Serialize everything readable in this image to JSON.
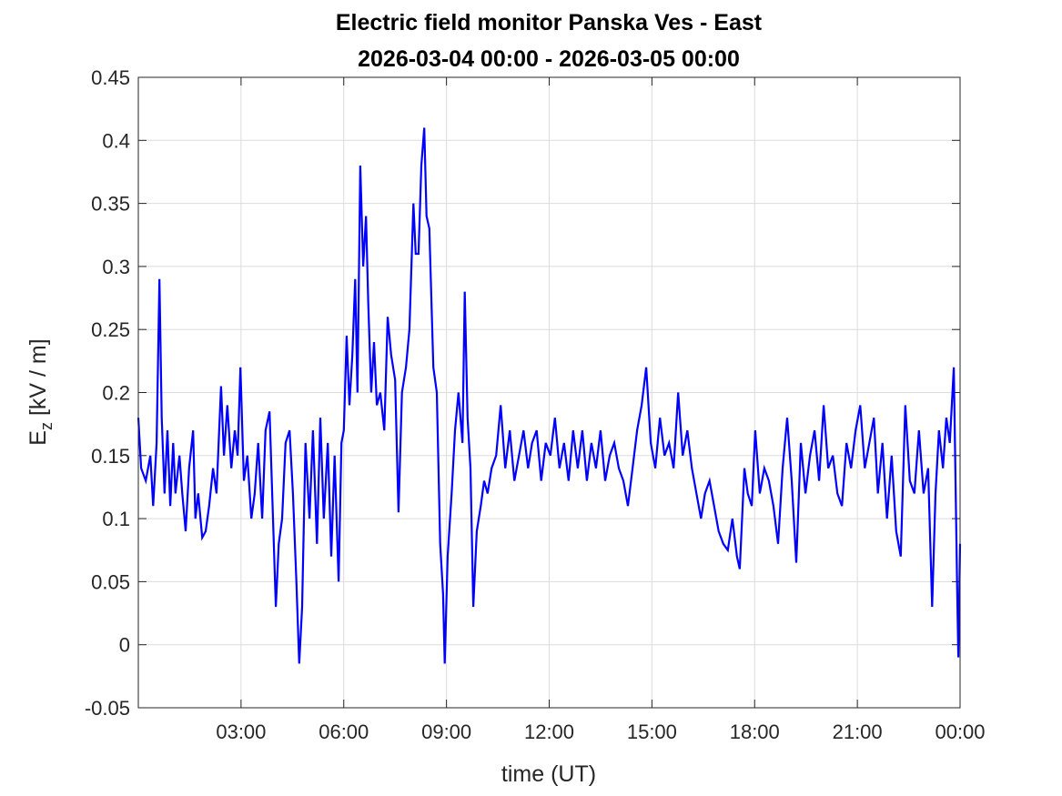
{
  "chart_data": {
    "type": "line",
    "title": [
      "Electric field monitor Panska Ves - East",
      "2026-03-04 00:00 - 2026-03-05 00:00"
    ],
    "xlabel": "time (UT)",
    "ylabel": {
      "main": "E",
      "sub": "z",
      "rest": " [kV / m]"
    },
    "xlim": [
      "2026-03-04 00:00",
      "2026-03-05 00:00"
    ],
    "ylim": [
      -0.05,
      0.45
    ],
    "grid": true,
    "x_ticks": [
      "03:00",
      "06:00",
      "09:00",
      "12:00",
      "15:00",
      "18:00",
      "21:00",
      "00:00"
    ],
    "y_ticks": [
      "-0.05",
      "0",
      "0.05",
      "0.1",
      "0.15",
      "0.2",
      "0.25",
      "0.3",
      "0.35",
      "0.4",
      "0.45"
    ],
    "line_color": "#0000ff",
    "series": [
      {
        "x": [
          "00:00",
          "00:05",
          "00:13",
          "00:21",
          "00:26",
          "00:32",
          "00:37",
          "00:41",
          "00:46",
          "00:51",
          "00:56",
          "01:01",
          "01:05",
          "01:12",
          "01:17",
          "01:23",
          "01:29",
          "01:36",
          "01:40",
          "01:45",
          "01:52",
          "01:58",
          "02:04",
          "02:11",
          "02:17",
          "02:25",
          "02:30",
          "02:36",
          "02:43",
          "02:49",
          "02:54",
          "02:59",
          "03:05",
          "03:11",
          "03:18",
          "03:24",
          "03:30",
          "03:37",
          "03:43",
          "03:50",
          "03:56",
          "04:01",
          "04:06",
          "04:12",
          "04:18",
          "04:25",
          "04:31",
          "04:37",
          "04:42",
          "04:47",
          "04:53",
          "05:00",
          "05:06",
          "05:13",
          "05:19",
          "05:25",
          "05:32",
          "05:38",
          "05:44",
          "05:51",
          "05:56",
          "06:00",
          "06:05",
          "06:10",
          "06:15",
          "06:20",
          "06:24",
          "06:29",
          "06:34",
          "06:39",
          "06:43",
          "06:48",
          "06:53",
          "06:58",
          "07:04",
          "07:11",
          "07:17",
          "07:23",
          "07:30",
          "07:36",
          "07:42",
          "07:49",
          "07:55",
          "08:02",
          "08:06",
          "08:11",
          "08:16",
          "08:21",
          "08:25",
          "08:30",
          "08:37",
          "08:43",
          "08:49",
          "08:54",
          "08:57",
          "09:02",
          "09:09",
          "09:15",
          "09:21",
          "09:28",
          "09:32",
          "09:37",
          "09:42",
          "09:47",
          "09:53",
          "10:00",
          "10:06",
          "10:12",
          "10:19",
          "10:27",
          "10:35",
          "10:43",
          "10:51",
          "10:59",
          "11:07",
          "11:15",
          "11:23",
          "11:30",
          "11:38",
          "11:46",
          "11:54",
          "12:02",
          "12:10",
          "12:18",
          "12:26",
          "12:34",
          "12:42",
          "12:50",
          "12:58",
          "13:06",
          "13:14",
          "13:22",
          "13:30",
          "13:38",
          "13:46",
          "13:54",
          "14:02",
          "14:10",
          "14:18",
          "14:26",
          "14:34",
          "14:42",
          "14:50",
          "14:58",
          "15:06",
          "15:14",
          "15:22",
          "15:30",
          "15:38",
          "15:46",
          "15:54",
          "16:02",
          "16:10",
          "16:18",
          "16:26",
          "16:33",
          "16:41",
          "16:49",
          "16:57",
          "17:05",
          "17:13",
          "17:21",
          "17:29",
          "17:34",
          "17:42",
          "17:48",
          "17:55",
          "18:01",
          "18:09",
          "18:17",
          "18:25",
          "18:33",
          "18:41",
          "18:49",
          "18:57",
          "19:05",
          "19:13",
          "19:21",
          "19:29",
          "19:37",
          "19:45",
          "19:53",
          "20:01",
          "20:09",
          "20:17",
          "20:25",
          "20:33",
          "20:41",
          "20:49",
          "20:57",
          "21:05",
          "21:13",
          "21:21",
          "21:29",
          "21:36",
          "21:44",
          "21:52",
          "22:00",
          "22:08",
          "22:16",
          "22:24",
          "22:32",
          "22:40",
          "22:48",
          "22:56",
          "23:04",
          "23:11",
          "23:17",
          "23:23",
          "23:30",
          "23:36",
          "23:42",
          "23:49",
          "23:55",
          "23:57",
          "00:00"
        ],
        "y": [
          0.18,
          0.14,
          0.13,
          0.15,
          0.11,
          0.16,
          0.29,
          0.18,
          0.12,
          0.17,
          0.11,
          0.16,
          0.12,
          0.15,
          0.12,
          0.09,
          0.14,
          0.17,
          0.1,
          0.12,
          0.085,
          0.09,
          0.11,
          0.14,
          0.12,
          0.205,
          0.15,
          0.19,
          0.14,
          0.17,
          0.15,
          0.22,
          0.13,
          0.15,
          0.1,
          0.12,
          0.16,
          0.1,
          0.17,
          0.185,
          0.1,
          0.03,
          0.08,
          0.1,
          0.16,
          0.17,
          0.12,
          0.05,
          -0.015,
          0.03,
          0.16,
          0.1,
          0.17,
          0.08,
          0.18,
          0.1,
          0.16,
          0.07,
          0.15,
          0.05,
          0.16,
          0.17,
          0.245,
          0.19,
          0.23,
          0.29,
          0.2,
          0.38,
          0.3,
          0.34,
          0.27,
          0.2,
          0.24,
          0.19,
          0.2,
          0.17,
          0.26,
          0.23,
          0.21,
          0.105,
          0.2,
          0.22,
          0.25,
          0.35,
          0.31,
          0.31,
          0.38,
          0.41,
          0.34,
          0.33,
          0.22,
          0.2,
          0.08,
          0.04,
          -0.015,
          0.07,
          0.12,
          0.17,
          0.2,
          0.16,
          0.28,
          0.18,
          0.14,
          0.03,
          0.09,
          0.11,
          0.13,
          0.12,
          0.14,
          0.15,
          0.19,
          0.14,
          0.17,
          0.13,
          0.15,
          0.17,
          0.14,
          0.16,
          0.17,
          0.13,
          0.16,
          0.15,
          0.18,
          0.14,
          0.16,
          0.13,
          0.17,
          0.14,
          0.17,
          0.13,
          0.16,
          0.14,
          0.17,
          0.13,
          0.15,
          0.16,
          0.14,
          0.13,
          0.11,
          0.14,
          0.17,
          0.19,
          0.22,
          0.16,
          0.14,
          0.18,
          0.15,
          0.16,
          0.14,
          0.2,
          0.15,
          0.17,
          0.14,
          0.12,
          0.1,
          0.12,
          0.13,
          0.11,
          0.09,
          0.08,
          0.075,
          0.1,
          0.07,
          0.06,
          0.14,
          0.12,
          0.11,
          0.17,
          0.12,
          0.14,
          0.13,
          0.11,
          0.08,
          0.14,
          0.18,
          0.13,
          0.065,
          0.16,
          0.12,
          0.15,
          0.17,
          0.13,
          0.19,
          0.14,
          0.15,
          0.12,
          0.11,
          0.16,
          0.14,
          0.17,
          0.19,
          0.14,
          0.16,
          0.18,
          0.12,
          0.16,
          0.1,
          0.15,
          0.09,
          0.07,
          0.19,
          0.13,
          0.12,
          0.17,
          0.12,
          0.14,
          0.03,
          0.12,
          0.17,
          0.14,
          0.18,
          0.16,
          0.22,
          0.04,
          -0.01,
          0.08
        ]
      }
    ]
  }
}
